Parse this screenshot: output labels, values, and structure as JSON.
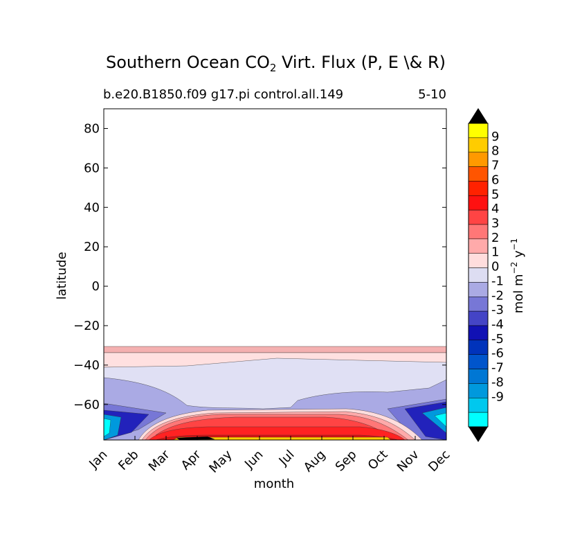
{
  "chart_data": {
    "type": "contour",
    "title_main": "Southern Ocean CO",
    "title_sub": "2",
    "title_rest": " Virt. Flux (P, E \\& R)",
    "subtitle_left": "b.e20.B1850.f09 g17.pi control.all.149",
    "subtitle_right": "5-10",
    "xlabel": "month",
    "ylabel": "latitude",
    "months": [
      "Jan",
      "Feb",
      "Mar",
      "Apr",
      "May",
      "Jun",
      "Jul",
      "Aug",
      "Sep",
      "Oct",
      "Nov",
      "Dec"
    ],
    "yticks": [
      80,
      60,
      40,
      20,
      0,
      -20,
      -40,
      -60
    ],
    "yticks_text": [
      "80",
      "60",
      "40",
      "20",
      "0",
      "−20",
      "−40",
      "−60"
    ],
    "ylim": [
      -78,
      90
    ],
    "colorbar": {
      "label": "mol m",
      "label_sup": "−2",
      "label_mid": " y",
      "label_sup2": "−1",
      "ticks": [
        "9",
        "8",
        "7",
        "6",
        "5",
        "4",
        "3",
        "2",
        "1",
        "0",
        "-1",
        "-2",
        "-3",
        "-4",
        "-5",
        "-6",
        "-7",
        "-8",
        "-9"
      ],
      "colors": [
        "#ffff00",
        "#ffcc00",
        "#ff9900",
        "#ff5500",
        "#ff2200",
        "#ff1111",
        "#ff4444",
        "#ff7777",
        "#ffaaaa",
        "#ffdddd",
        "#ddddf2",
        "#aaaae4",
        "#7777d6",
        "#4444c6",
        "#1111b4",
        "#0033bb",
        "#0055cc",
        "#0077d4",
        "#0099dd",
        "#00c8ee",
        "#00ffff"
      ],
      "over_color": "#000000",
      "under_color": "#000000"
    }
  }
}
